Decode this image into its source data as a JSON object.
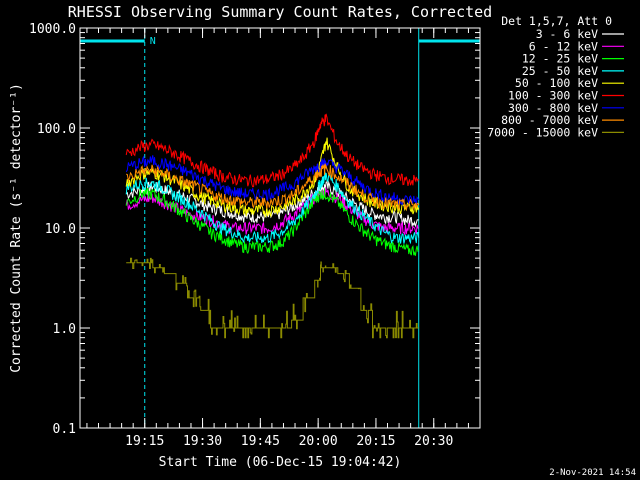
{
  "chart_data": {
    "type": "line",
    "title": "RHESSI Observing Summary Count Rates, Corrected",
    "xlabel": "Start Time (06-Dec-15 19:04:42)",
    "ylabel": "Corrected Count Rate (s⁻¹ detector⁻¹)",
    "yscale": "log",
    "ylim": [
      0.1,
      1000
    ],
    "xlim": [
      4.7,
      39.3
    ],
    "y_tick_labels": [
      "1000.0",
      "100.0",
      "10.0",
      "1.0",
      "0.1"
    ],
    "y_tick_values": [
      1000,
      100,
      10,
      1,
      0.1
    ],
    "x_tick_labels": [
      "19:15",
      "19:30",
      "19:45",
      "20:00",
      "20:15",
      "20:30"
    ],
    "x_tick_values": [
      10.3,
      15.3,
      20.3,
      25.3,
      30.3,
      35.3
    ],
    "legend_title": "Det 1,5,7, Att 0",
    "legend_position": "top-right",
    "annotation_N": "N",
    "night_band_color": "#00e5ee",
    "x": [
      8.7,
      10.0,
      11.0,
      12.0,
      13.0,
      14.0,
      15.0,
      16.0,
      17.0,
      18.0,
      19.0,
      20.0,
      21.0,
      22.0,
      23.0,
      24.0,
      25.0,
      25.5,
      26.0,
      27.0,
      28.0,
      29.0,
      30.0,
      31.0,
      32.0,
      33.0,
      34.0
    ],
    "series": [
      {
        "name": "3 - 6 keV",
        "color": "#ffffff",
        "values": [
          22,
          24,
          26,
          24,
          22,
          20,
          18,
          16,
          15,
          14,
          13,
          13,
          13,
          14,
          16,
          19,
          23,
          25,
          26,
          23,
          19,
          16,
          14,
          13,
          13,
          12,
          12
        ]
      },
      {
        "name": "6 - 12 keV",
        "color": "#ff00ff",
        "values": [
          17,
          19,
          20,
          18,
          16,
          14,
          13,
          12,
          11,
          10,
          10,
          10,
          10,
          11,
          13,
          16,
          20,
          22,
          23,
          20,
          16,
          13,
          11,
          10,
          10,
          10,
          10
        ]
      },
      {
        "name": "12 - 25 keV",
        "color": "#00ff00",
        "values": [
          18,
          22,
          22,
          19,
          16,
          13,
          11,
          9,
          8,
          7,
          6.5,
          6.5,
          6.5,
          7,
          9,
          13,
          19,
          22,
          22,
          18,
          13,
          10,
          8,
          7,
          6.5,
          6,
          6
        ]
      },
      {
        "name": "25 - 50 keV",
        "color": "#00ffff",
        "values": [
          25,
          28,
          28,
          25,
          21,
          18,
          15,
          12,
          10,
          9,
          8,
          8,
          8,
          9,
          11,
          15,
          22,
          28,
          34,
          26,
          18,
          14,
          11,
          9,
          8,
          8,
          8
        ]
      },
      {
        "name": "50 - 100 keV",
        "color": "#ffff00",
        "values": [
          28,
          35,
          36,
          33,
          29,
          25,
          21,
          19,
          17,
          16,
          15,
          15,
          15,
          16,
          18,
          22,
          30,
          45,
          75,
          40,
          25,
          21,
          18,
          17,
          16,
          16,
          16
        ]
      },
      {
        "name": "100 - 300 keV",
        "color": "#ff0000",
        "values": [
          55,
          65,
          68,
          62,
          55,
          48,
          42,
          37,
          33,
          31,
          30,
          30,
          31,
          34,
          39,
          50,
          75,
          110,
          125,
          70,
          50,
          40,
          35,
          32,
          31,
          30,
          30
        ]
      },
      {
        "name": "300 - 800 keV",
        "color": "#0000ff",
        "values": [
          40,
          45,
          47,
          44,
          40,
          36,
          32,
          28,
          25,
          23,
          22,
          22,
          22,
          24,
          27,
          33,
          40,
          43,
          46,
          40,
          33,
          27,
          23,
          21,
          20,
          19,
          19
        ]
      },
      {
        "name": "800 - 7000 keV",
        "color": "#ff8c00",
        "values": [
          32,
          37,
          38,
          35,
          31,
          28,
          25,
          22,
          20,
          19,
          18,
          18,
          18,
          19,
          21,
          26,
          33,
          37,
          40,
          33,
          27,
          22,
          19,
          18,
          17,
          17,
          17
        ]
      },
      {
        "name": "7000 - 15000 keV",
        "color": "#8b8b00",
        "values": [
          4.5,
          4.5,
          4.0,
          3.5,
          2.8,
          2.0,
          1.5,
          1.0,
          1.0,
          1.0,
          1.0,
          1.0,
          1.0,
          1.0,
          1.2,
          2.0,
          3.0,
          4.0,
          4.0,
          3.5,
          2.5,
          1.5,
          1.0,
          1.0,
          1.0,
          1.0,
          1.0
        ]
      }
    ],
    "night_intervals": [
      [
        4.7,
        10.3
      ],
      [
        34.0,
        39.3
      ]
    ],
    "footer": "2-Nov-2021 14:54"
  }
}
